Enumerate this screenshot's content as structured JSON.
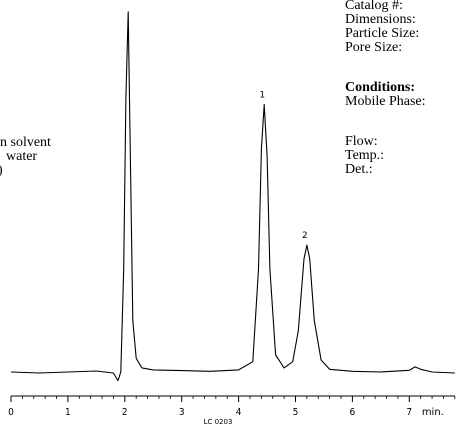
{
  "info_panel": {
    "catalog_label": "Catalog #:",
    "dimensions_label": "Dimensions:",
    "particle_size_label": "Particle Size:",
    "pore_size_label": "Pore Size:",
    "conditions_heading": "Conditions:",
    "mobile_phase_label": "Mobile Phase:",
    "flow_label": "Flow:",
    "temp_label": "Temp.:",
    "det_label": "Det.:"
  },
  "left_text": {
    "line1": "n solvent",
    "line2": "water",
    "line3": ")"
  },
  "chart_data": {
    "type": "line",
    "xlabel": "min.",
    "x_ticks": [
      0,
      1,
      2,
      3,
      4,
      5,
      6,
      7
    ],
    "xlim": [
      0,
      7.8
    ],
    "footer_label": "LC 0203",
    "grid": false,
    "peak_labels": [
      {
        "label": "1",
        "x": 4.45,
        "y": 0.78
      },
      {
        "label": "2",
        "x": 5.2,
        "y": 0.37
      }
    ],
    "series": [
      {
        "x": [
          0,
          0.5,
          1.0,
          1.5,
          1.8,
          1.88,
          1.93,
          1.98,
          2.02,
          2.06,
          2.1,
          2.14,
          2.2,
          2.3,
          2.5,
          3.0,
          3.5,
          4.0,
          4.25,
          4.35,
          4.4,
          4.45,
          4.5,
          4.55,
          4.65,
          4.8,
          4.95,
          5.05,
          5.15,
          5.2,
          5.25,
          5.33,
          5.45,
          5.6,
          6.0,
          6.5,
          7.0,
          7.1,
          7.2,
          7.4,
          7.8
        ],
        "y": [
          0.0,
          -0.003,
          0.0,
          0.003,
          -0.003,
          -0.025,
          0.0,
          0.3,
          0.8,
          1.05,
          0.6,
          0.15,
          0.04,
          0.012,
          0.006,
          0.004,
          0.002,
          0.006,
          0.03,
          0.3,
          0.65,
          0.78,
          0.63,
          0.3,
          0.05,
          0.012,
          0.03,
          0.12,
          0.33,
          0.37,
          0.33,
          0.15,
          0.035,
          0.008,
          0.002,
          0.0,
          0.005,
          0.015,
          0.008,
          0.0,
          -0.003
        ]
      }
    ]
  }
}
